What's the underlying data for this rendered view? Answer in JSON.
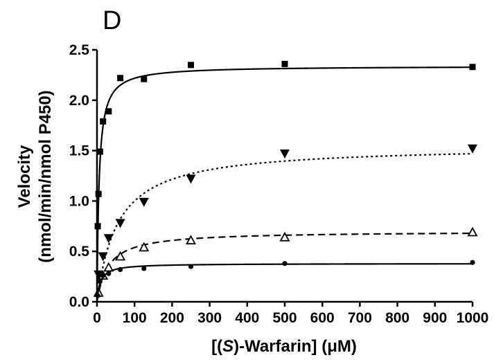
{
  "chart_data": {
    "type": "scatter",
    "panel_label": "D",
    "title": "",
    "xlabel": {
      "prefix": "[(",
      "italic": "S",
      "suffix": ")-Warfarin] (μM)"
    },
    "ylabel": {
      "line1": "Velocity",
      "line2": "(nmol/min/nmol P450)"
    },
    "xlim": [
      0,
      1000
    ],
    "ylim": [
      0,
      2.5
    ],
    "x_ticks": [
      "0",
      "100",
      "200",
      "300",
      "400",
      "500",
      "600",
      "700",
      "800",
      "900",
      "1000"
    ],
    "y_ticks": [
      "0.0",
      "0.5",
      "1.0",
      "1.5",
      "2.0",
      "2.5"
    ],
    "grid": false,
    "legend": "none",
    "series": [
      {
        "marker": "square",
        "line_style": "solid",
        "points": [
          {
            "x": 2,
            "y": 0.75
          },
          {
            "x": 4,
            "y": 1.07
          },
          {
            "x": 8,
            "y": 1.49
          },
          {
            "x": 16,
            "y": 1.79
          },
          {
            "x": 31,
            "y": 1.89
          },
          {
            "x": 62,
            "y": 2.22
          },
          {
            "x": 125,
            "y": 2.21
          },
          {
            "x": 250,
            "y": 2.35
          },
          {
            "x": 500,
            "y": 2.36
          },
          {
            "x": 1000,
            "y": 2.33
          }
        ],
        "fit": {
          "model": "michaelis-menten",
          "vmax": 2.34,
          "km": 5.5
        }
      },
      {
        "marker": "triangle-down-filled",
        "line_style": "dotted",
        "points": [
          {
            "x": 4,
            "y": 0.27
          },
          {
            "x": 16,
            "y": 0.45
          },
          {
            "x": 31,
            "y": 0.63
          },
          {
            "x": 62,
            "y": 0.78
          },
          {
            "x": 125,
            "y": 0.99
          },
          {
            "x": 250,
            "y": 1.22
          },
          {
            "x": 500,
            "y": 1.47
          },
          {
            "x": 1000,
            "y": 1.52
          }
        ],
        "fit": {
          "model": "michaelis-menten",
          "vmax": 1.55,
          "km": 55
        }
      },
      {
        "marker": "triangle-up-open",
        "line_style": "dashed",
        "points": [
          {
            "x": 4,
            "y": 0.09
          },
          {
            "x": 16,
            "y": 0.26
          },
          {
            "x": 31,
            "y": 0.34
          },
          {
            "x": 62,
            "y": 0.45
          },
          {
            "x": 125,
            "y": 0.54
          },
          {
            "x": 250,
            "y": 0.61
          },
          {
            "x": 500,
            "y": 0.64
          },
          {
            "x": 1000,
            "y": 0.69
          }
        ],
        "fit": {
          "model": "michaelis-menten",
          "vmax": 0.7,
          "km": 30
        }
      },
      {
        "marker": "circle",
        "line_style": "solid",
        "points": [
          {
            "x": 2,
            "y": 0.06
          },
          {
            "x": 8,
            "y": 0.2
          },
          {
            "x": 16,
            "y": 0.26
          },
          {
            "x": 31,
            "y": 0.28
          },
          {
            "x": 62,
            "y": 0.32
          },
          {
            "x": 125,
            "y": 0.33
          },
          {
            "x": 250,
            "y": 0.35
          },
          {
            "x": 500,
            "y": 0.38
          },
          {
            "x": 1000,
            "y": 0.39
          }
        ],
        "fit": {
          "model": "michaelis-menten",
          "vmax": 0.38,
          "km": 9
        }
      }
    ]
  }
}
